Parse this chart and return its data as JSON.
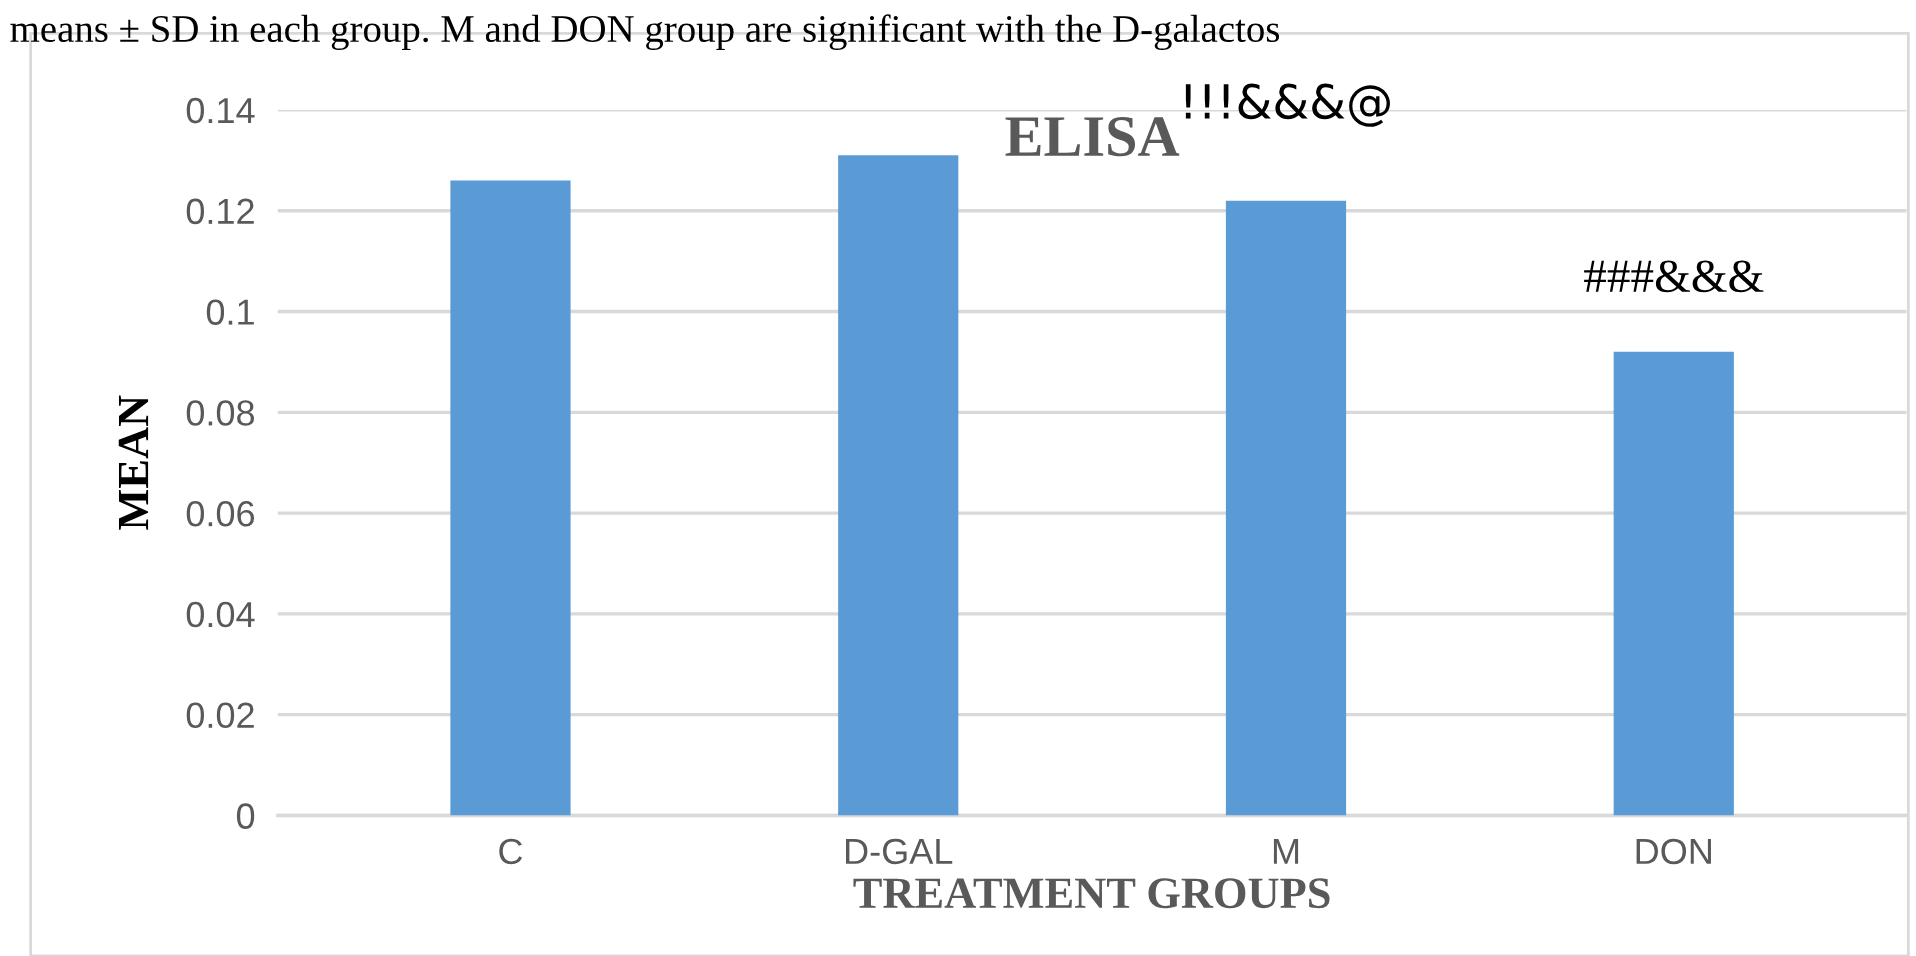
{
  "chart_data": {
    "type": "bar",
    "title": "ELISA",
    "xlabel": "TREATMENT GROUPS",
    "ylabel": "MEAN",
    "categories": [
      "C",
      "D-GAL",
      "M",
      "DON"
    ],
    "values": [
      0.126,
      0.131,
      0.122,
      0.092
    ],
    "color": "#5b9bd5",
    "ylim": [
      0,
      0.14
    ],
    "yticks": [
      0,
      0.02,
      0.04,
      0.06,
      0.08,
      0.1,
      0.12,
      0.14
    ],
    "grid": "y",
    "annotations": [
      "means ± SD in each group. M and DON group are significant with the D-galactos",
      "!!!&&&@",
      "###&&&"
    ]
  }
}
